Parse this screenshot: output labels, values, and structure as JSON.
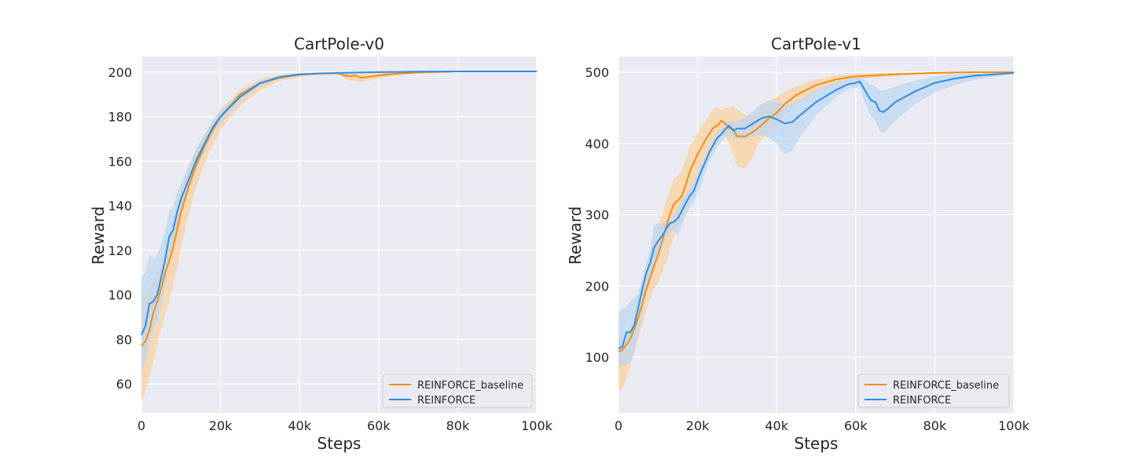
{
  "colors": {
    "baseline": "#f28e14",
    "reinforce": "#2d8fe6",
    "baseline_band": "#fbd2a0",
    "reinforce_band": "#b9d6f2"
  },
  "chart_data": [
    {
      "type": "line",
      "title": "CartPole-v0",
      "xlabel": "Steps",
      "ylabel": "Reward",
      "xlim": [
        0,
        100000
      ],
      "ylim": [
        47,
        207
      ],
      "xticks": [
        0,
        20000,
        40000,
        60000,
        80000,
        100000
      ],
      "xtick_labels": [
        "0",
        "20k",
        "40k",
        "60k",
        "80k",
        "100k"
      ],
      "yticks": [
        60,
        80,
        100,
        120,
        140,
        160,
        180,
        200
      ],
      "ytick_labels": [
        "60",
        "80",
        "100",
        "120",
        "140",
        "160",
        "180",
        "200"
      ],
      "grid": true,
      "legend_position": "lower-right",
      "series": [
        {
          "name": "REINFORCE_baseline",
          "color_key": "baseline",
          "x": [
            0,
            1000,
            2000,
            3000,
            4000,
            5000,
            6000,
            7000,
            8000,
            9000,
            10000,
            12000,
            14000,
            16000,
            18000,
            20000,
            25000,
            30000,
            35000,
            40000,
            45000,
            50000,
            51000,
            52000,
            53000,
            54000,
            55000,
            56000,
            58000,
            60000,
            65000,
            70000,
            80000,
            90000,
            100000
          ],
          "y": [
            77,
            79,
            84,
            92,
            97,
            103,
            110,
            115,
            121,
            129,
            137,
            149,
            159,
            167,
            174,
            180,
            190,
            195,
            197.5,
            198.8,
            199.4,
            199.5,
            198.6,
            198.2,
            198.2,
            198.5,
            197.8,
            197.5,
            198,
            198.5,
            199.3,
            199.8,
            200.3,
            200.3,
            200.3
          ],
          "upper": [
            100,
            101,
            103,
            106,
            110,
            115,
            122,
            128,
            134,
            141,
            147,
            157,
            166,
            172,
            178,
            183,
            192,
            197,
            198.8,
            199.6,
            200,
            200.1,
            199.5,
            199.2,
            199.2,
            199.4,
            199,
            199,
            199.2,
            199.5,
            199.9,
            200.2,
            200.5,
            200.5,
            200.5
          ],
          "lower": [
            52,
            57,
            63,
            70,
            78,
            85,
            91,
            97,
            104,
            112,
            121,
            137,
            149,
            159,
            167,
            174,
            185,
            192,
            196,
            198,
            198.8,
            198.9,
            197.5,
            196.5,
            196.2,
            196,
            195.5,
            195.5,
            196.5,
            197.3,
            198.7,
            199.4,
            200,
            200.1,
            200.1
          ]
        },
        {
          "name": "REINFORCE",
          "color_key": "reinforce",
          "x": [
            0,
            1000,
            2000,
            3000,
            4000,
            5000,
            6000,
            7000,
            8000,
            9000,
            10000,
            12000,
            14000,
            16000,
            18000,
            20000,
            25000,
            30000,
            35000,
            40000,
            45000,
            50000,
            55000,
            60000,
            70000,
            80000,
            90000,
            100000
          ],
          "y": [
            82,
            86,
            96,
            97,
            100,
            108,
            116,
            126,
            129,
            137,
            143,
            152,
            161,
            168,
            175,
            180,
            189,
            195,
            197.8,
            199,
            199.4,
            199.6,
            199.8,
            200,
            200.2,
            200.3,
            200.3,
            200.3
          ],
          "upper": [
            108,
            110,
            118,
            116,
            118,
            123,
            129,
            137,
            140,
            146,
            150,
            158,
            166,
            172,
            178,
            183,
            191,
            196,
            198.5,
            199.4,
            199.8,
            200,
            200.2,
            200.3,
            200.4,
            200.5,
            200.5,
            200.5
          ],
          "lower": [
            64,
            70,
            78,
            84,
            88,
            95,
            104,
            115,
            120,
            128,
            136,
            147,
            157,
            164,
            172,
            177,
            187,
            194,
            197,
            198.5,
            199,
            199.2,
            199.5,
            199.7,
            200,
            200.1,
            200.1,
            200.1
          ]
        }
      ]
    },
    {
      "type": "line",
      "title": "CartPole-v1",
      "xlabel": "Steps",
      "ylabel": "Reward",
      "xlim": [
        0,
        100000
      ],
      "ylim": [
        22,
        522
      ],
      "xticks": [
        0,
        20000,
        40000,
        60000,
        80000,
        100000
      ],
      "xtick_labels": [
        "0",
        "20k",
        "40k",
        "60k",
        "80k",
        "100k"
      ],
      "yticks": [
        100,
        200,
        300,
        400,
        500
      ],
      "ytick_labels": [
        "100",
        "200",
        "300",
        "400",
        "500"
      ],
      "grid": true,
      "legend_position": "lower-right",
      "series": [
        {
          "name": "REINFORCE_baseline",
          "color_key": "baseline",
          "x": [
            0,
            1000,
            2000,
            3000,
            4000,
            5000,
            6000,
            7000,
            8000,
            9000,
            10000,
            11000,
            12000,
            13000,
            14000,
            15000,
            16000,
            17000,
            18000,
            20000,
            22000,
            24000,
            25000,
            26000,
            27000,
            28000,
            29000,
            30000,
            32000,
            34000,
            35000,
            36000,
            38000,
            40000,
            42000,
            45000,
            50000,
            55000,
            60000,
            70000,
            80000,
            90000,
            100000
          ],
          "y": [
            108,
            110,
            118,
            126,
            140,
            156,
            175,
            195,
            212,
            228,
            244,
            262,
            282,
            300,
            315,
            320,
            326,
            342,
            360,
            385,
            405,
            422,
            425,
            432,
            428,
            422,
            420,
            410,
            410,
            416,
            420,
            425,
            435,
            443,
            455,
            468,
            482,
            490,
            494,
            497,
            499,
            500,
            500
          ],
          "upper": [
            125,
            128,
            133,
            140,
            160,
            185,
            205,
            222,
            245,
            268,
            285,
            300,
            318,
            335,
            350,
            355,
            362,
            378,
            395,
            415,
            432,
            448,
            450,
            447,
            450,
            450,
            453,
            448,
            440,
            440,
            445,
            452,
            460,
            465,
            472,
            480,
            490,
            495,
            498,
            499,
            500,
            500,
            500
          ],
          "lower": [
            55,
            56,
            70,
            88,
            110,
            128,
            145,
            165,
            182,
            196,
            205,
            218,
            232,
            250,
            270,
            282,
            290,
            305,
            325,
            352,
            380,
            395,
            403,
            415,
            410,
            400,
            385,
            368,
            365,
            380,
            395,
            405,
            415,
            425,
            440,
            455,
            472,
            484,
            490,
            495,
            498,
            499,
            500
          ]
        },
        {
          "name": "REINFORCE",
          "color_key": "reinforce",
          "x": [
            0,
            1000,
            2000,
            3000,
            4000,
            5000,
            6000,
            7000,
            8000,
            9000,
            10000,
            11000,
            12000,
            13000,
            14000,
            15000,
            16000,
            17000,
            18000,
            19000,
            20000,
            21000,
            22000,
            23000,
            24000,
            25000,
            26000,
            27000,
            28000,
            29000,
            30000,
            32000,
            34000,
            36000,
            38000,
            40000,
            42000,
            44000,
            46000,
            50000,
            55000,
            58000,
            60000,
            61000,
            62000,
            63000,
            64000,
            65000,
            66000,
            67000,
            68000,
            70000,
            75000,
            80000,
            85000,
            90000,
            95000,
            100000
          ],
          "y": [
            112,
            115,
            135,
            135,
            145,
            170,
            195,
            218,
            232,
            254,
            263,
            270,
            280,
            288,
            290,
            295,
            305,
            316,
            326,
            333,
            348,
            362,
            375,
            388,
            398,
            408,
            413,
            420,
            425,
            418,
            421,
            421,
            428,
            435,
            438,
            434,
            428,
            430,
            440,
            458,
            475,
            483,
            485,
            487,
            478,
            468,
            460,
            458,
            446,
            444,
            448,
            458,
            473,
            485,
            491,
            495,
            497,
            499
          ],
          "upper": [
            162,
            168,
            170,
            180,
            183,
            190,
            212,
            232,
            250,
            285,
            288,
            288,
            290,
            292,
            300,
            308,
            318,
            328,
            336,
            344,
            358,
            370,
            382,
            395,
            406,
            414,
            420,
            426,
            432,
            430,
            433,
            436,
            445,
            455,
            460,
            458,
            455,
            456,
            462,
            475,
            486,
            490,
            492,
            492,
            490,
            486,
            482,
            480,
            475,
            474,
            476,
            480,
            488,
            494,
            497,
            498,
            499,
            500
          ],
          "lower": [
            88,
            88,
            90,
            92,
            105,
            130,
            160,
            190,
            205,
            225,
            238,
            250,
            265,
            276,
            278,
            270,
            285,
            298,
            310,
            318,
            330,
            345,
            360,
            375,
            385,
            395,
            403,
            410,
            415,
            405,
            408,
            405,
            410,
            412,
            408,
            400,
            385,
            390,
            410,
            440,
            465,
            476,
            478,
            480,
            462,
            448,
            438,
            432,
            418,
            415,
            420,
            432,
            455,
            472,
            482,
            489,
            494,
            497
          ]
        }
      ]
    }
  ]
}
